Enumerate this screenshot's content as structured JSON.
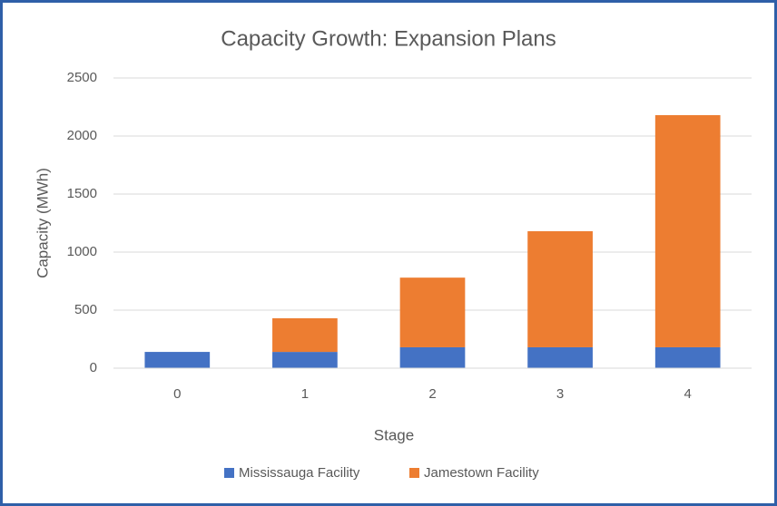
{
  "chart_data": {
    "type": "stacked_bar",
    "title": "Capacity Growth: Expansion Plans",
    "x_label": "Stage",
    "y_label": "Capacity (MWh)",
    "categories": [
      "0",
      "1",
      "2",
      "3",
      "4"
    ],
    "series": [
      {
        "name": "Mississauga Facility",
        "color": "#4472c4",
        "values": [
          140,
          140,
          180,
          180,
          180
        ]
      },
      {
        "name": "Jamestown Facility",
        "color": "#ed7d31",
        "values": [
          0,
          290,
          600,
          1000,
          2000
        ]
      }
    ],
    "ylim": [
      0,
      2500
    ],
    "yticks": [
      0,
      500,
      1000,
      1500,
      2000,
      2500
    ],
    "grid": true,
    "legend": "bottom"
  }
}
